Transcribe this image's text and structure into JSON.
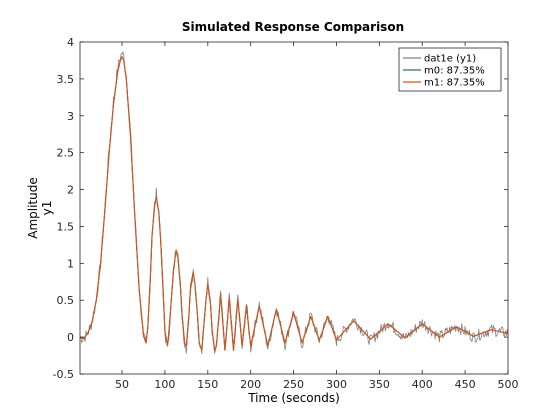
{
  "chart_data": {
    "type": "line",
    "title": "Simulated Response Comparison",
    "xlabel": "Time (seconds)",
    "ylabel": "Amplitude",
    "ylabel2": "y1",
    "xlim": [
      1,
      500
    ],
    "ylim": [
      -0.5,
      4
    ],
    "xticks": [
      50,
      100,
      150,
      200,
      250,
      300,
      350,
      400,
      450,
      500
    ],
    "yticks": [
      -0.5,
      0,
      0.5,
      1,
      1.5,
      2,
      2.5,
      3,
      3.5,
      4
    ],
    "grid": false,
    "legend_position": "top-right",
    "series": [
      {
        "name": "dat1e (y1)",
        "color": "#808080",
        "noisy": true,
        "x": [
          1,
          5,
          10,
          15,
          20,
          25,
          30,
          35,
          40,
          45,
          48,
          50,
          52,
          55,
          60,
          65,
          70,
          75,
          78,
          80,
          83,
          85,
          88,
          90,
          93,
          95,
          98,
          100,
          103,
          105,
          110,
          113,
          115,
          118,
          120,
          123,
          125,
          128,
          130,
          133,
          135,
          138,
          140,
          143,
          145,
          148,
          150,
          153,
          155,
          158,
          160,
          165,
          170,
          175,
          180,
          185,
          190,
          195,
          200,
          210,
          220,
          230,
          240,
          250,
          260,
          270,
          280,
          290,
          300,
          320,
          340,
          360,
          380,
          400,
          420,
          440,
          460,
          480,
          500
        ],
        "y": [
          0.0,
          -0.02,
          0.05,
          0.2,
          0.5,
          1.0,
          1.75,
          2.55,
          3.2,
          3.65,
          3.8,
          3.85,
          3.8,
          3.55,
          2.75,
          1.65,
          0.65,
          0.0,
          -0.1,
          0.1,
          0.8,
          1.4,
          1.8,
          1.95,
          1.7,
          1.35,
          0.6,
          0.05,
          -0.15,
          0.1,
          0.9,
          1.2,
          1.15,
          0.7,
          0.3,
          -0.1,
          -0.15,
          0.3,
          0.7,
          0.9,
          0.75,
          0.3,
          -0.1,
          -0.2,
          0.1,
          0.55,
          0.75,
          0.5,
          0.1,
          -0.2,
          -0.15,
          0.6,
          -0.2,
          0.55,
          -0.2,
          0.55,
          -0.15,
          0.45,
          -0.15,
          0.45,
          -0.15,
          0.4,
          -0.1,
          0.35,
          -0.1,
          0.3,
          -0.05,
          0.3,
          -0.05,
          0.25,
          -0.05,
          0.2,
          -0.02,
          0.2,
          0.0,
          0.15,
          0.0,
          0.1,
          0.05
        ]
      },
      {
        "name": "m0: 87.35%",
        "color": "#2e6f6a",
        "noisy": false,
        "x": [
          1,
          5,
          10,
          15,
          20,
          25,
          30,
          35,
          40,
          45,
          48,
          50,
          52,
          55,
          60,
          65,
          70,
          75,
          78,
          80,
          83,
          85,
          88,
          90,
          93,
          95,
          98,
          100,
          103,
          105,
          110,
          113,
          115,
          118,
          120,
          123,
          125,
          128,
          130,
          133,
          135,
          138,
          140,
          143,
          145,
          148,
          150,
          153,
          155,
          158,
          160,
          165,
          170,
          175,
          180,
          185,
          190,
          195,
          200,
          210,
          220,
          230,
          240,
          250,
          260,
          270,
          280,
          290,
          300,
          320,
          340,
          360,
          380,
          400,
          420,
          440,
          460,
          480,
          500
        ],
        "y": [
          0.0,
          -0.02,
          0.05,
          0.2,
          0.5,
          1.0,
          1.72,
          2.5,
          3.15,
          3.6,
          3.75,
          3.8,
          3.75,
          3.5,
          2.7,
          1.62,
          0.65,
          0.02,
          -0.08,
          0.12,
          0.8,
          1.38,
          1.78,
          1.9,
          1.68,
          1.32,
          0.6,
          0.08,
          -0.12,
          0.12,
          0.9,
          1.18,
          1.12,
          0.7,
          0.3,
          -0.08,
          -0.12,
          0.3,
          0.7,
          0.88,
          0.72,
          0.3,
          -0.08,
          -0.18,
          0.1,
          0.52,
          0.72,
          0.48,
          0.1,
          -0.18,
          -0.12,
          0.58,
          -0.18,
          0.52,
          -0.18,
          0.52,
          -0.12,
          0.42,
          -0.12,
          0.42,
          -0.12,
          0.38,
          -0.08,
          0.33,
          -0.08,
          0.28,
          -0.04,
          0.28,
          -0.04,
          0.22,
          -0.03,
          0.18,
          -0.01,
          0.18,
          0.0,
          0.14,
          0.01,
          0.1,
          0.05
        ]
      },
      {
        "name": "m1: 87.35%",
        "color": "#d95319",
        "noisy": false,
        "x": [
          1,
          5,
          10,
          15,
          20,
          25,
          30,
          35,
          40,
          45,
          48,
          50,
          52,
          55,
          60,
          65,
          70,
          75,
          78,
          80,
          83,
          85,
          88,
          90,
          93,
          95,
          98,
          100,
          103,
          105,
          110,
          113,
          115,
          118,
          120,
          123,
          125,
          128,
          130,
          133,
          135,
          138,
          140,
          143,
          145,
          148,
          150,
          153,
          155,
          158,
          160,
          165,
          170,
          175,
          180,
          185,
          190,
          195,
          200,
          210,
          220,
          230,
          240,
          250,
          260,
          270,
          280,
          290,
          300,
          320,
          340,
          360,
          380,
          400,
          420,
          440,
          460,
          480,
          500
        ],
        "y": [
          0.0,
          -0.02,
          0.05,
          0.2,
          0.5,
          1.0,
          1.72,
          2.5,
          3.15,
          3.6,
          3.75,
          3.8,
          3.75,
          3.5,
          2.7,
          1.62,
          0.65,
          0.02,
          -0.08,
          0.12,
          0.8,
          1.38,
          1.78,
          1.9,
          1.68,
          1.32,
          0.6,
          0.08,
          -0.12,
          0.12,
          0.9,
          1.18,
          1.12,
          0.7,
          0.3,
          -0.08,
          -0.12,
          0.3,
          0.7,
          0.88,
          0.72,
          0.3,
          -0.08,
          -0.18,
          0.1,
          0.52,
          0.72,
          0.48,
          0.1,
          -0.18,
          -0.12,
          0.58,
          -0.18,
          0.52,
          -0.18,
          0.52,
          -0.12,
          0.42,
          -0.12,
          0.42,
          -0.12,
          0.38,
          -0.08,
          0.33,
          -0.08,
          0.28,
          -0.04,
          0.28,
          -0.04,
          0.22,
          -0.03,
          0.18,
          -0.01,
          0.18,
          0.0,
          0.14,
          0.01,
          0.1,
          0.05
        ]
      }
    ]
  }
}
